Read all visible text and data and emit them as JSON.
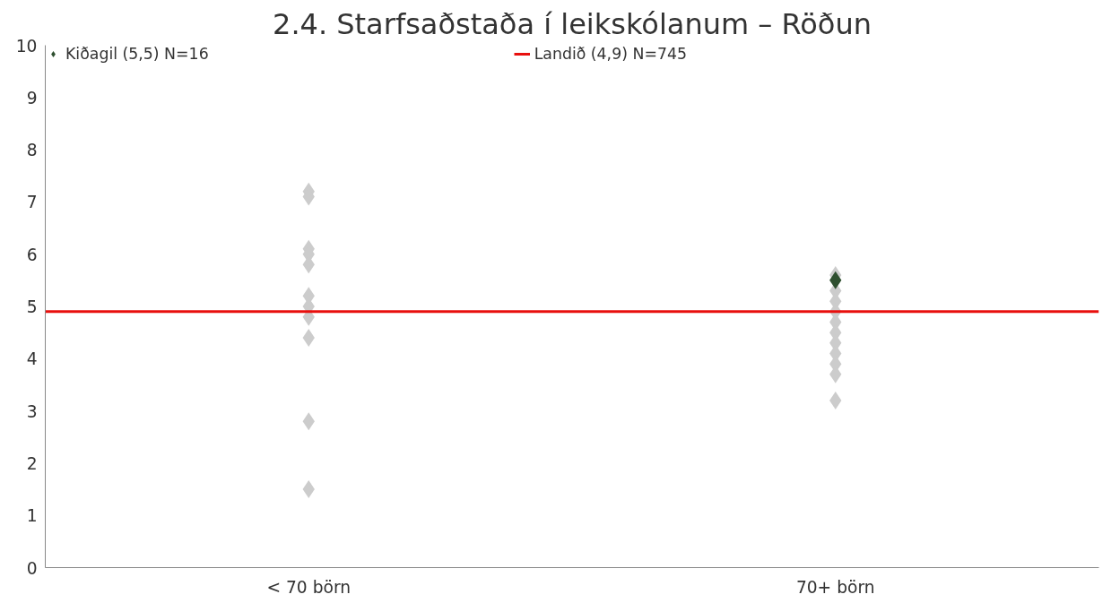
{
  "chart_data": {
    "type": "scatter",
    "title": "2.4. Starfsaðstaða í leikskólanum – Röðun",
    "categories": [
      "< 70 börn",
      "70+ börn"
    ],
    "series": [
      {
        "color": "#cccccc",
        "marker": "diamond",
        "x": [
          "< 70 börn",
          "< 70 börn",
          "< 70 börn",
          "< 70 börn",
          "< 70 börn",
          "< 70 börn",
          "< 70 börn",
          "< 70 börn",
          "< 70 börn",
          "< 70 börn",
          "< 70 börn",
          "70+ börn",
          "70+ börn",
          "70+ börn",
          "70+ börn",
          "70+ börn",
          "70+ börn",
          "70+ börn",
          "70+ börn",
          "70+ börn",
          "70+ börn",
          "70+ börn"
        ],
        "values": [
          7.2,
          7.1,
          6.1,
          6.0,
          5.8,
          5.2,
          5.0,
          4.8,
          4.4,
          2.8,
          1.5,
          5.6,
          5.3,
          5.1,
          4.9,
          4.7,
          4.5,
          4.3,
          4.1,
          3.9,
          3.7,
          3.2
        ]
      },
      {
        "name": "Kiðagil (5,5) N=16",
        "color": "#2f5030",
        "marker": "diamond",
        "x": [
          "70+ börn"
        ],
        "values": [
          5.5
        ]
      }
    ],
    "ref_lines": [
      {
        "axis": "y",
        "value": 4.9,
        "label": "Landið (4,9) N=745",
        "color": "#e8100e"
      }
    ],
    "ylim": [
      0,
      10
    ],
    "yticks": [
      0,
      1,
      2,
      3,
      4,
      5,
      6,
      7,
      8,
      9,
      10
    ],
    "grid": false,
    "legend": "top"
  }
}
